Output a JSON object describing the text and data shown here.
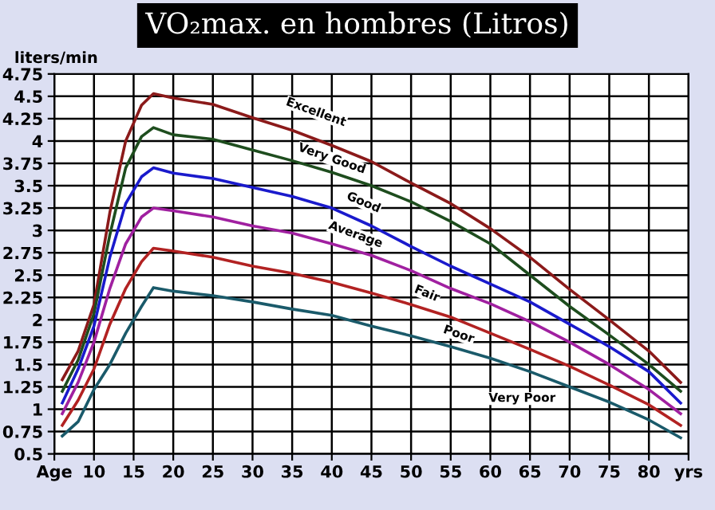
{
  "chart_data": {
    "type": "line",
    "title": "VO₂max. en hombres (Litros)",
    "ylabel": "liters/min",
    "x": [
      6,
      8,
      10,
      12,
      14,
      16,
      17.5,
      20,
      25,
      30,
      35,
      40,
      45,
      50,
      55,
      60,
      65,
      70,
      75,
      80,
      84
    ],
    "series": [
      {
        "color": "#8b1a1a",
        "values": [
          1.33,
          1.65,
          2.17,
          3.2,
          4.0,
          4.4,
          4.53,
          4.48,
          4.41,
          4.26,
          4.12,
          3.95,
          3.77,
          3.53,
          3.3,
          3.02,
          2.7,
          2.34,
          2.0,
          1.65,
          1.3
        ]
      },
      {
        "color": "#1e4d1e",
        "values": [
          1.2,
          1.55,
          2.07,
          2.95,
          3.7,
          4.05,
          4.15,
          4.07,
          4.02,
          3.9,
          3.78,
          3.65,
          3.5,
          3.32,
          3.1,
          2.85,
          2.5,
          2.15,
          1.83,
          1.5,
          1.2
        ]
      },
      {
        "color": "#1a1acc",
        "values": [
          1.07,
          1.45,
          1.93,
          2.7,
          3.3,
          3.6,
          3.7,
          3.64,
          3.58,
          3.48,
          3.38,
          3.25,
          3.05,
          2.82,
          2.6,
          2.4,
          2.2,
          1.95,
          1.7,
          1.42,
          1.07
        ]
      },
      {
        "color": "#a020a0",
        "values": [
          0.95,
          1.3,
          1.75,
          2.35,
          2.85,
          3.15,
          3.25,
          3.22,
          3.15,
          3.05,
          2.97,
          2.85,
          2.72,
          2.55,
          2.35,
          2.18,
          1.98,
          1.75,
          1.5,
          1.22,
          0.95
        ]
      },
      {
        "color": "#b22222",
        "values": [
          0.82,
          1.1,
          1.45,
          1.95,
          2.35,
          2.65,
          2.8,
          2.77,
          2.7,
          2.6,
          2.52,
          2.42,
          2.3,
          2.17,
          2.03,
          1.85,
          1.67,
          1.48,
          1.27,
          1.05,
          0.82
        ]
      },
      {
        "color": "#1a5a6a",
        "values": [
          0.7,
          0.86,
          1.22,
          1.5,
          1.85,
          2.15,
          2.36,
          2.32,
          2.27,
          2.2,
          2.12,
          2.05,
          1.93,
          1.82,
          1.7,
          1.57,
          1.42,
          1.25,
          1.08,
          0.88,
          0.68
        ]
      }
    ],
    "annotations": [
      "Excellent",
      "Very Good",
      "Good",
      "Average",
      "Fair",
      "Poor",
      "Very Poor"
    ],
    "xlim": [
      5,
      85
    ],
    "xticks": [
      {
        "value": 5,
        "label": "Age"
      },
      10,
      15,
      20,
      25,
      30,
      35,
      40,
      45,
      50,
      55,
      60,
      65,
      70,
      75,
      80,
      {
        "value": 85,
        "label": "yrs"
      }
    ],
    "ylim": [
      0.5,
      4.75
    ],
    "yticks": [
      0.5,
      0.75,
      1,
      1.25,
      1.5,
      1.75,
      2,
      2.25,
      2.5,
      2.75,
      3,
      3.25,
      3.5,
      3.75,
      4,
      4.25,
      4.5,
      4.75
    ],
    "grid": true,
    "marker": "none",
    "line_style": "solid"
  }
}
